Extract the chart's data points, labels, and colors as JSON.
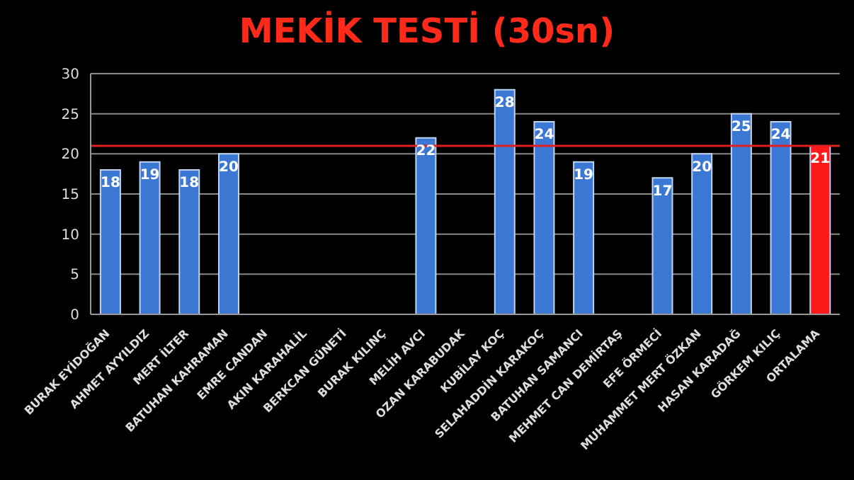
{
  "chart_data": {
    "type": "bar",
    "title": "MEKİK TESTİ (30sn)",
    "categories": [
      "BURAK EYİDOĞAN",
      "AHMET AYYILDIZ",
      "MERT İLTER",
      "BATUHAN KAHRAMAN",
      "EMRE CANDAN",
      "AKIN KARAHALİL",
      "BERKCAN GÜNETİ",
      "BURAK KILINÇ",
      "MELİH AVCI",
      "OZAN KARABUDAK",
      "KUBİLAY KOÇ",
      "SELAHADDİN KARAKOÇ",
      "BATUHAN SAMANCI",
      "MEHMET CAN DEMİRTAŞ",
      "EFE ÖRMECİ",
      "MUHAMMET MERT ÖZKAN",
      "HASAN KARADAĞ",
      "GÖRKEM KILIÇ",
      "ORTALAMA"
    ],
    "values": [
      18,
      19,
      18,
      20,
      null,
      null,
      null,
      null,
      22,
      null,
      28,
      24,
      19,
      null,
      17,
      20,
      25,
      24,
      21
    ],
    "colors": [
      "#3a78d4",
      "#3a78d4",
      "#3a78d4",
      "#3a78d4",
      "#3a78d4",
      "#3a78d4",
      "#3a78d4",
      "#3a78d4",
      "#3a78d4",
      "#3a78d4",
      "#3a78d4",
      "#3a78d4",
      "#3a78d4",
      "#3a78d4",
      "#3a78d4",
      "#3a78d4",
      "#3a78d4",
      "#3a78d4",
      "#ff1a1a"
    ],
    "ylim": [
      0,
      30
    ],
    "yticks": [
      0,
      5,
      10,
      15,
      20,
      25,
      30
    ],
    "grid": "y",
    "data_labels": true,
    "ref_lines": [
      {
        "axis": "y",
        "value": 21,
        "color": "#e02020"
      }
    ]
  }
}
